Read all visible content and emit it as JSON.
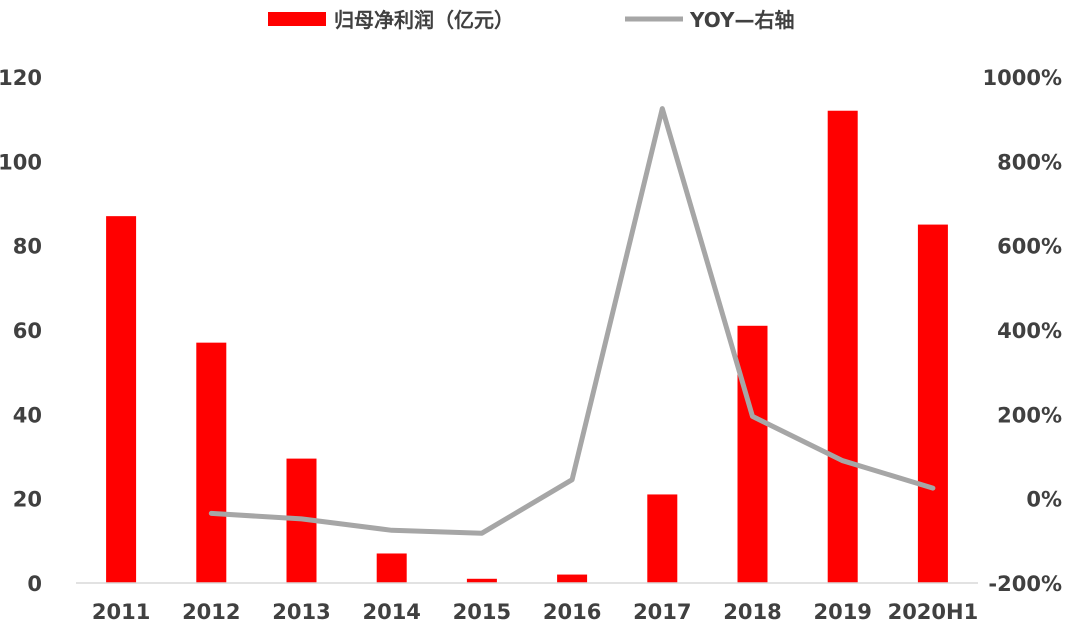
{
  "chart_data": {
    "type": "bar",
    "categories": [
      "2011",
      "2012",
      "2013",
      "2014",
      "2015",
      "2016",
      "2017",
      "2018",
      "2019",
      "2020H1"
    ],
    "series": [
      {
        "name": "归母净利润（亿元）",
        "type": "bar",
        "axis": "left",
        "color": "#ff0000",
        "values": [
          87,
          57,
          29.5,
          7,
          1,
          2,
          21,
          61,
          112,
          85
        ]
      },
      {
        "name": "YOY—右轴",
        "type": "line",
        "axis": "right",
        "color": "#a6a6a6",
        "values": [
          null,
          -35,
          -48,
          -75,
          -82,
          45,
          925,
          195,
          90,
          25
        ]
      }
    ],
    "y_left": {
      "min": 0,
      "max": 120,
      "ticks": [
        0,
        20,
        40,
        60,
        80,
        100,
        120
      ]
    },
    "y_right": {
      "min": -200,
      "max": 1000,
      "ticks": [
        "-200%",
        "0%",
        "200%",
        "400%",
        "600%",
        "800%",
        "1000%"
      ]
    },
    "legend_position": "top",
    "grid": false
  }
}
